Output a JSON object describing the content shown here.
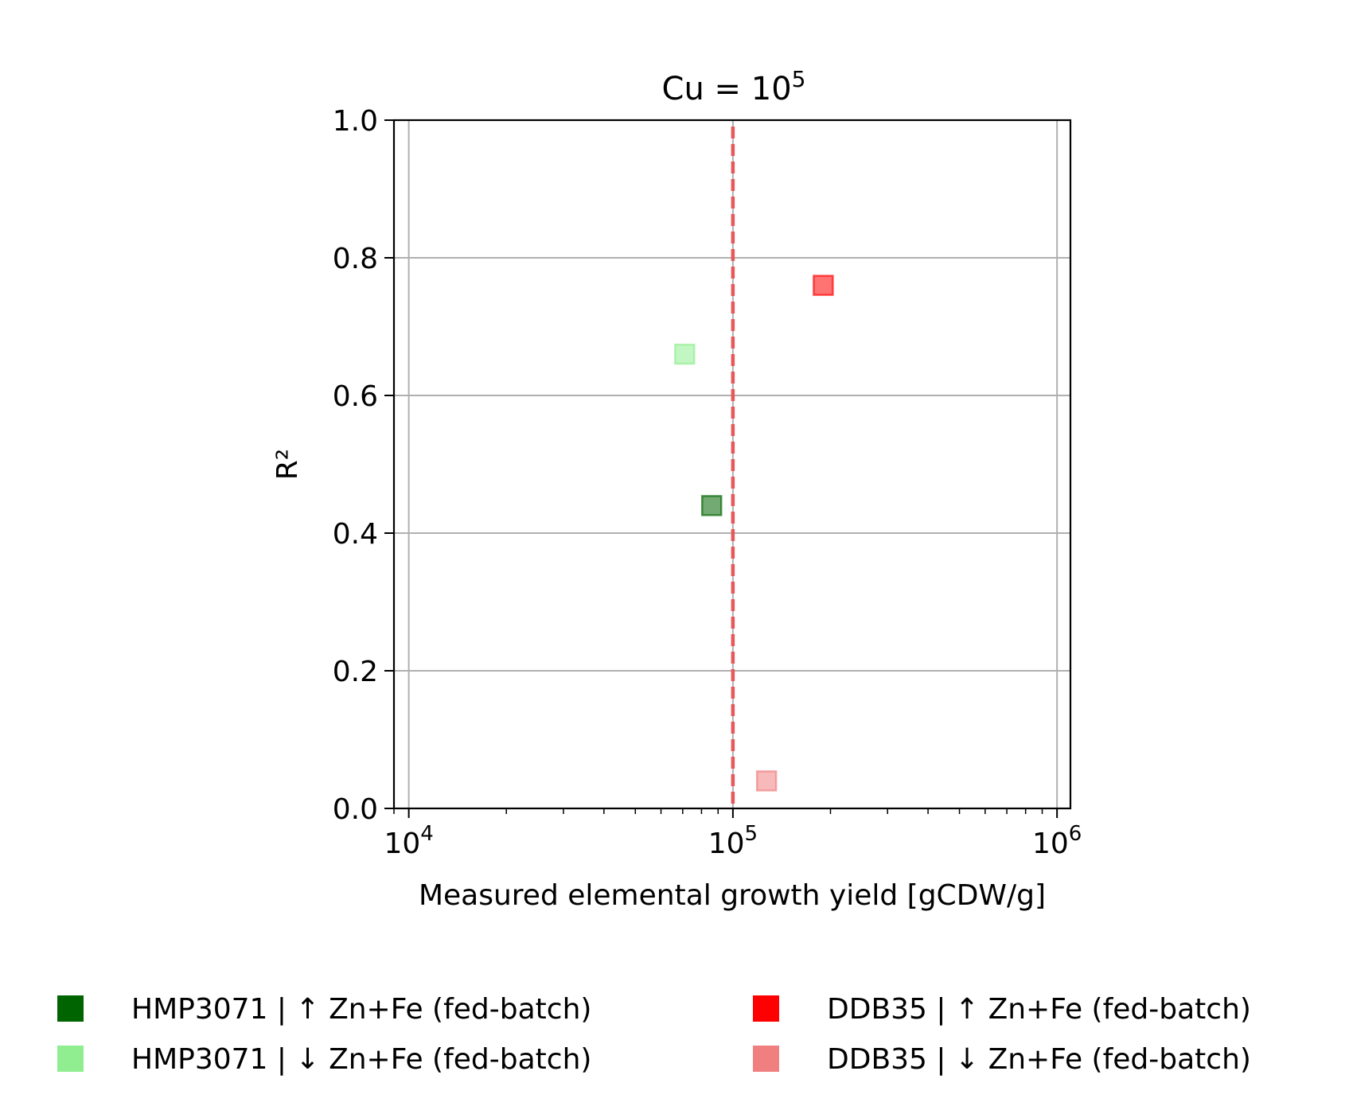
{
  "chart_data": {
    "type": "scatter",
    "title": {
      "base": "Cu = 10",
      "exponent": "5"
    },
    "xlabel": "Measured elemental growth yield [gCDW/g]",
    "ylabel": "R²",
    "x_scale": "log",
    "xlim": [
      9000,
      1100000
    ],
    "ylim": [
      0,
      1.0
    ],
    "x_ticks": [
      {
        "value": 10000,
        "base": "10",
        "exponent": "4"
      },
      {
        "value": 100000,
        "base": "10",
        "exponent": "5"
      },
      {
        "value": 1000000,
        "base": "10",
        "exponent": "6"
      }
    ],
    "y_ticks": [
      {
        "value": 0.0,
        "label": "0.0"
      },
      {
        "value": 0.2,
        "label": "0.2"
      },
      {
        "value": 0.4,
        "label": "0.4"
      },
      {
        "value": 0.6,
        "label": "0.6"
      },
      {
        "value": 0.8,
        "label": "0.8"
      },
      {
        "value": 1.0,
        "label": "1.0"
      }
    ],
    "grid": true,
    "reference_line": {
      "x": 100000,
      "style": "dashed",
      "color": "#e8575a"
    },
    "series": [
      {
        "name": "HMP3071 | ↑ Zn+Fe (fed-batch)",
        "color": "#006400",
        "opacity": 0.55,
        "x": 86000,
        "y": 0.44
      },
      {
        "name": "HMP3071 | ↓ Zn+Fe (fed-batch)",
        "color": "#90ee90",
        "opacity": 0.55,
        "x": 71000,
        "y": 0.66
      },
      {
        "name": "DDB35 | ↑ Zn+Fe (fed-batch)",
        "color": "#ff0000",
        "opacity": 0.55,
        "x": 190000,
        "y": 0.76
      },
      {
        "name": "DDB35 | ↓ Zn+Fe (fed-batch)",
        "color": "#f08080",
        "opacity": 0.55,
        "x": 127000,
        "y": 0.04
      }
    ],
    "legend": {
      "placement": "bottom",
      "columns": 2,
      "entries": [
        {
          "label": "HMP3071 | ↑ Zn+Fe (fed-batch)",
          "color": "#006400"
        },
        {
          "label": "HMP3071 | ↓ Zn+Fe (fed-batch)",
          "color": "#90ee90"
        },
        {
          "label": "DDB35 | ↑ Zn+Fe (fed-batch)",
          "color": "#ff0000"
        },
        {
          "label": "DDB35 | ↓ Zn+Fe (fed-batch)",
          "color": "#f08080"
        }
      ]
    }
  }
}
